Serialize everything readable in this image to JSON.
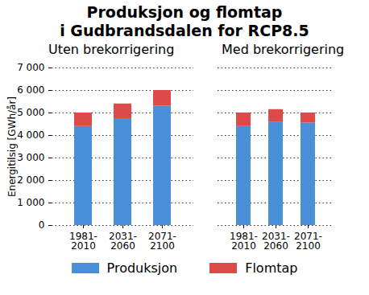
{
  "title": "Produksjon og flomtap\ni Gudbrandsdalen for RCP8.5",
  "chart_data": [
    {
      "type": "bar",
      "subtitle": "Uten brekorrigering",
      "stacked": true,
      "grid": true,
      "legend": "bottom",
      "ylabel": "Energitilsig [GWh/år]",
      "categories": [
        "1981-2010",
        "2031-2060",
        "2071-2100"
      ],
      "series": [
        {
          "name": "Produksjon",
          "color": "#4a90d9",
          "values": [
            4400,
            4750,
            5300
          ]
        },
        {
          "name": "Flomtap",
          "color": "#dc4a4a",
          "values": [
            600,
            650,
            700
          ]
        }
      ],
      "ylim": [
        0,
        7000
      ],
      "yticks": [
        0,
        {
          "value": 1000,
          "label": "1 000"
        },
        {
          "value": 2000,
          "label": "2 000"
        },
        {
          "value": 3000,
          "label": "3 000"
        },
        {
          "value": 4000,
          "label": "4 000"
        },
        {
          "value": 5000,
          "label": "5 000"
        },
        {
          "value": 6000,
          "label": "6 000"
        },
        {
          "value": 7000,
          "label": "7 000"
        }
      ]
    },
    {
      "type": "bar",
      "subtitle": "Med brekorrigering",
      "stacked": true,
      "grid": true,
      "legend": "bottom",
      "tick_labels": "x",
      "categories": [
        "1981-2010",
        "2031-2060",
        "2071-2100"
      ],
      "series": [
        {
          "name": "Produksjon",
          "color": "#4a90d9",
          "values": [
            4400,
            4580,
            4550
          ]
        },
        {
          "name": "Flomtap",
          "color": "#dc4a4a",
          "values": [
            600,
            570,
            450
          ]
        }
      ],
      "ylim": [
        0,
        7000
      ],
      "yticks": [
        0,
        {
          "value": 1000,
          "label": "1 000"
        },
        {
          "value": 2000,
          "label": "2 000"
        },
        {
          "value": 3000,
          "label": "3 000"
        },
        {
          "value": 4000,
          "label": "4 000"
        },
        {
          "value": 5000,
          "label": "5 000"
        },
        {
          "value": 6000,
          "label": "6 000"
        },
        {
          "value": 7000,
          "label": "7 000"
        }
      ]
    }
  ]
}
